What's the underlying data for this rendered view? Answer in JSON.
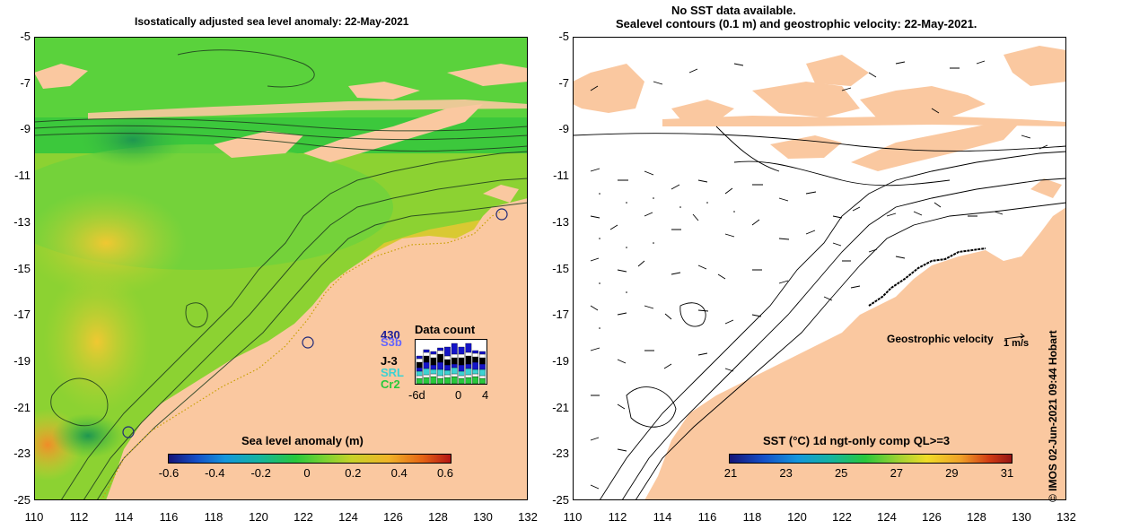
{
  "titles": {
    "left": "Isostatically adjusted sea level anomaly: 22-May-2021",
    "right_line1": "No SST data available.",
    "right_line2": "Sealevel contours (0.1 m) and geostrophic velocity: 22-May-2021."
  },
  "axes": {
    "y_ticks": [
      "-5",
      "-7",
      "-9",
      "-11",
      "-13",
      "-15",
      "-17",
      "-19",
      "-21",
      "-23",
      "-25"
    ],
    "x_ticks": [
      "110",
      "112",
      "114",
      "116",
      "118",
      "120",
      "122",
      "124",
      "126",
      "128",
      "130",
      "132"
    ]
  },
  "left_colorbar": {
    "title": "Sea level anomaly (m)",
    "labels": [
      "-0.6",
      "-0.4",
      "-0.2",
      "0",
      "0.2",
      "0.4",
      "0.6"
    ]
  },
  "right_colorbar": {
    "title": "SST (°C) 1d ngt-only comp QL>=3",
    "labels": [
      "21",
      "23",
      "25",
      "27",
      "29",
      "31"
    ]
  },
  "data_count": {
    "title": "Data count",
    "top_value": "430",
    "missions": [
      "S3b",
      "J-3",
      "SRL",
      "Cr2"
    ],
    "x_labels": [
      "-6d",
      "0",
      "4"
    ]
  },
  "velocity_legend": {
    "label": "Geostrophic velocity",
    "unit": "1 m/s"
  },
  "credit": "© IMOS 02-Jun-2021 09:44 Hobart",
  "colors": {
    "land": "#fac8a0",
    "sla_high": "#f0c832",
    "sla_mid": "#78dc32",
    "sla_low": "#28b43c"
  }
}
